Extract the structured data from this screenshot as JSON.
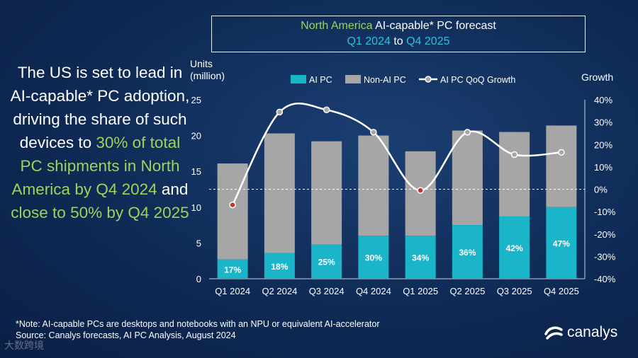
{
  "title": {
    "region": "North America",
    "rest": " AI-capable* PC forecast",
    "period_start": "Q1 2024",
    "period_to": " to ",
    "period_end": "Q4 2025"
  },
  "headline": {
    "part1": "The US is set to lead in AI-capable* PC adoption, driving the share of such devices to ",
    "highlight1": "30% of total PC shipments in North America by Q4 2024",
    "part2": " and ",
    "highlight2": "close to 50% by Q4 2025"
  },
  "footnote": {
    "note": "*Note: AI-capable PCs are desktops and notebooks with an NPU or equivalent AI-accelerator",
    "source": "Source: Canalys forecasts, AI PC Analysis, August 2024"
  },
  "brand": "canalys",
  "watermark": "大数跨境",
  "colors": {
    "ai_pc": "#1bb5c9",
    "non_ai_pc": "#a6a6a6",
    "growth_line": "#ffffff",
    "accent_green": "#9fd35a",
    "accent_cyan": "#2ec0d8"
  },
  "chart_data": {
    "type": "bar",
    "stacked": true,
    "title": "North America AI-capable* PC forecast Q1 2024 to Q4 2025",
    "ylabel_left": "Units (million)",
    "ylabel_right": "Growth",
    "categories": [
      "Q1 2024",
      "Q2 2024",
      "Q3 2024",
      "Q4 2024",
      "Q1 2025",
      "Q2 2025",
      "Q3 2025",
      "Q4 2025"
    ],
    "ylim": [
      0,
      25
    ],
    "yticks": [
      0,
      5,
      10,
      15,
      20,
      25
    ],
    "y2lim": [
      -40,
      40
    ],
    "y2ticks": [
      -40,
      -30,
      -20,
      -10,
      0,
      10,
      20,
      30,
      40
    ],
    "y2ticklabels": [
      "-40%",
      "-30%",
      "-20%",
      "-10%",
      "0%",
      "10%",
      "20%",
      "30%",
      "40%"
    ],
    "series": [
      {
        "name": "AI PC",
        "values": [
          2.7,
          3.6,
          4.8,
          6.0,
          6.0,
          7.5,
          8.7,
          10.0
        ]
      },
      {
        "name": "Non-AI PC",
        "values": [
          13.4,
          16.7,
          14.4,
          14.0,
          11.8,
          13.2,
          11.8,
          11.4
        ]
      }
    ],
    "share_labels": [
      "17%",
      "18%",
      "25%",
      "30%",
      "34%",
      "36%",
      "42%",
      "47%"
    ],
    "line": {
      "name": "AI PC QoQ Growth",
      "axis": "right",
      "values": [
        -7,
        34.5,
        35.5,
        25.5,
        -0.5,
        25.5,
        15.5,
        16.5
      ]
    },
    "legend": [
      "AI PC",
      "Non-AI PC",
      "AI PC QoQ Growth"
    ],
    "legend_position": "top",
    "reference_line": "0% growth (dashed)"
  }
}
